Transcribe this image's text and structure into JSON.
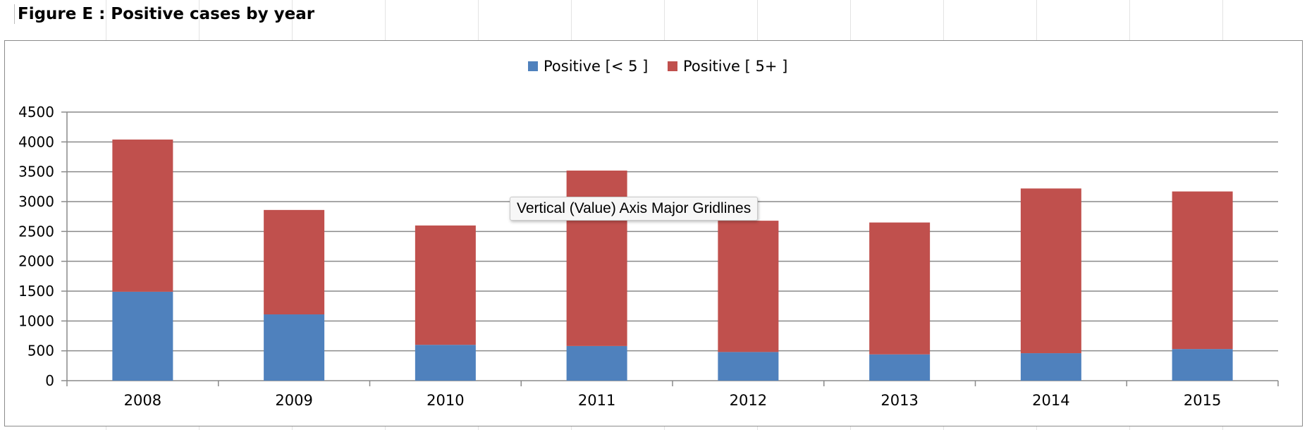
{
  "figure": {
    "title": "Figure E : Positive cases  by year"
  },
  "tooltip": {
    "text": "Vertical (Value) Axis Major Gridlines"
  },
  "colors": {
    "series_under5": "#4f81bd",
    "series_5plus": "#c0504d",
    "gridline": "#8a8a8a",
    "axis": "#8a8a8a"
  },
  "chart_data": {
    "type": "bar",
    "stacked": true,
    "title": "",
    "xlabel": "",
    "ylabel": "",
    "categories": [
      "2008",
      "2009",
      "2010",
      "2011",
      "2012",
      "2013",
      "2014",
      "2015"
    ],
    "series": [
      {
        "name": "Positive  [< 5  ]",
        "color": "#4f81bd",
        "values": [
          1490,
          1110,
          600,
          580,
          480,
          440,
          460,
          530
        ]
      },
      {
        "name": "Positive  [ 5+ ]",
        "color": "#c0504d",
        "values": [
          2550,
          1750,
          2000,
          2940,
          2200,
          2210,
          2760,
          2640
        ]
      }
    ],
    "ylim": [
      0,
      4500
    ],
    "yticks": [
      "0",
      "500",
      "1000",
      "1500",
      "2000",
      "2500",
      "3000",
      "3500",
      "4000",
      "4500"
    ],
    "grid": true,
    "legend": "top-center"
  }
}
